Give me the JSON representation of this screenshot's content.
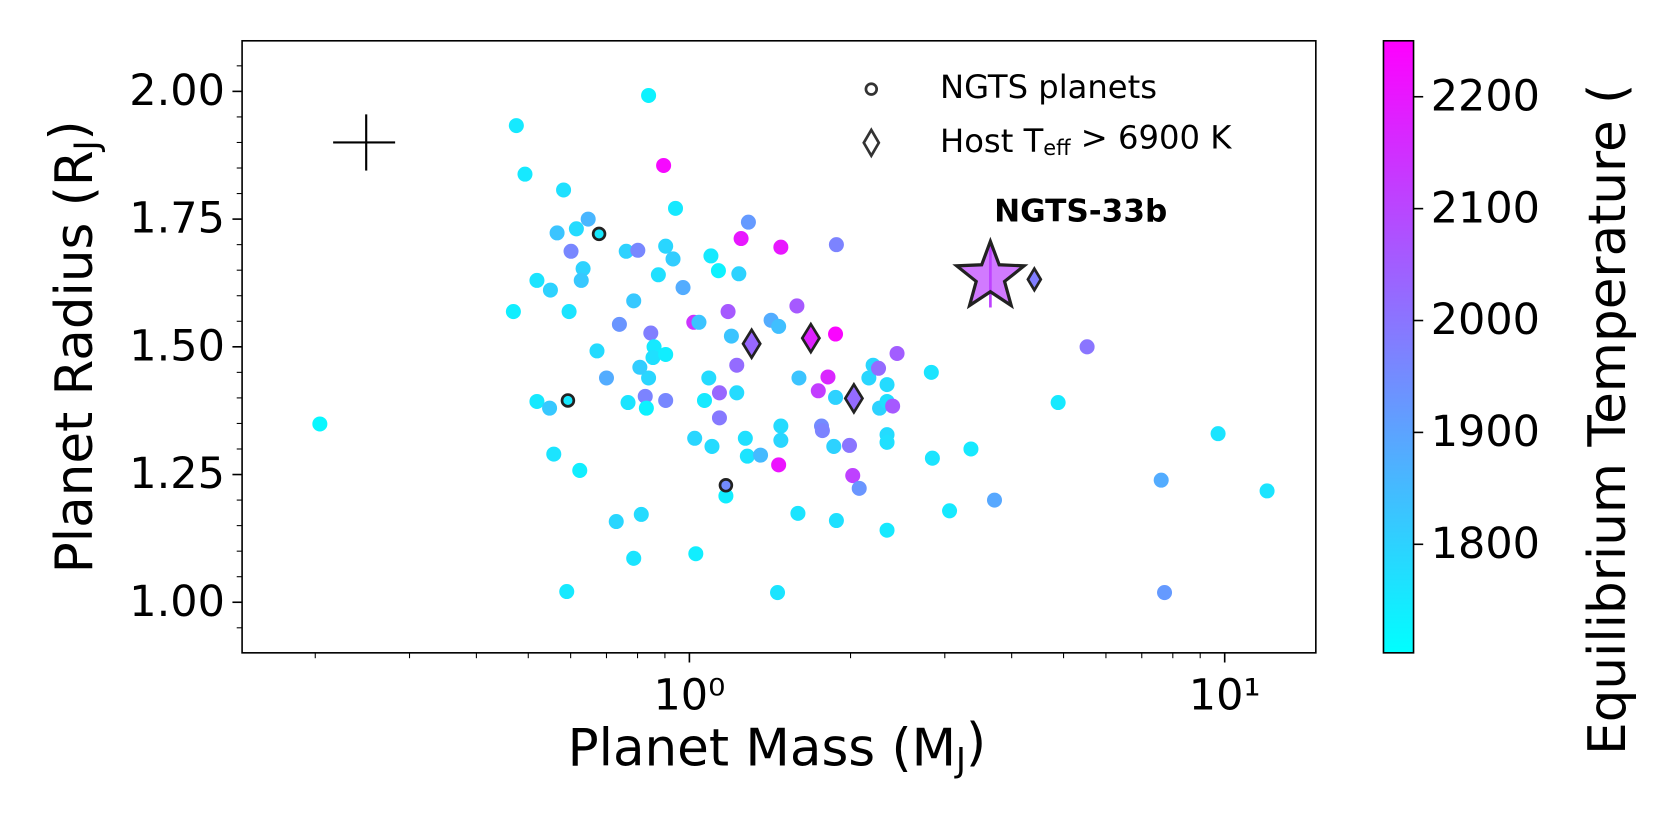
{
  "chart_data": {
    "type": "scatter",
    "xscale": "log",
    "xlabel": {
      "text": "Planet Mass (M",
      "sub": "J",
      "tail": ")"
    },
    "ylabel": {
      "text": "Planet Radius (R",
      "sub": "J",
      "tail": ")"
    },
    "xlim": [
      0.146,
      14.8
    ],
    "ylim": [
      0.901,
      2.099
    ],
    "xticks": [
      {
        "value": 1,
        "label": "10⁰"
      },
      {
        "value": 10,
        "label": "10¹"
      }
    ],
    "xminorticks": [
      0.2,
      0.3,
      0.4,
      0.5,
      0.6,
      0.7,
      0.8,
      0.9,
      2,
      3,
      4,
      5,
      6,
      7,
      8,
      9
    ],
    "yticks": [
      {
        "value": 1,
        "label": "1.00"
      },
      {
        "value": 1.25,
        "label": "1.25"
      },
      {
        "value": 1.5,
        "label": "1.50"
      },
      {
        "value": 1.75,
        "label": "1.75"
      },
      {
        "value": 2,
        "label": "2.00"
      }
    ],
    "yminorticks": [
      0.95,
      1.05,
      1.1,
      1.15,
      1.2,
      1.3,
      1.35,
      1.4,
      1.45,
      1.55,
      1.6,
      1.65,
      1.7,
      1.8,
      1.85,
      1.9,
      1.95,
      2.05
    ],
    "colorbar": {
      "label": "Equilibrium Temperature (",
      "colormap": "cool",
      "clim": [
        1703,
        2250
      ],
      "ticks": [
        1800,
        1900,
        2000,
        2100,
        2200
      ]
    },
    "typical_error": {
      "x": 0.249,
      "y": 1.9,
      "xerr": 0.033,
      "yerr": 0.055
    },
    "series": [
      {
        "marker": "circle",
        "x": [
          0.204,
          0.475,
          0.493,
          0.469,
          0.519,
          0.519,
          0.548,
          0.558,
          0.582,
          0.55,
          0.566,
          0.596,
          0.615,
          0.601,
          0.647,
          0.633,
          0.628,
          0.624,
          0.59,
          0.672,
          0.7,
          0.73,
          0.74,
          0.762,
          0.787,
          0.801,
          0.787,
          0.813,
          0.839,
          0.895,
          0.875,
          0.903,
          0.942,
          0.932,
          0.973,
          0.847,
          0.859,
          0.855,
          0.903,
          0.839,
          0.808,
          0.827,
          0.831,
          0.903,
          0.768,
          1.023,
          1.067,
          1.028,
          1.019,
          1.042,
          1.097,
          1.133,
          1.087,
          1.102,
          1.138,
          1.138,
          1.17,
          1.181,
          1.198,
          1.226,
          1.237,
          1.249,
          1.289,
          1.272,
          1.283,
          1.226,
          1.358,
          1.421,
          1.482,
          1.468,
          1.482,
          1.482,
          1.468,
          1.461,
          1.595,
          1.588,
          1.602,
          1.741,
          1.765,
          1.772,
          1.815,
          1.875,
          1.882,
          1.875,
          1.861,
          1.882,
          1.991,
          2.019,
          2.076,
          2.164,
          2.204,
          2.266,
          2.256,
          2.34,
          2.34,
          2.34,
          2.34,
          2.34,
          2.397,
          2.443,
          2.831,
          2.844,
          3.062,
          3.357,
          3.715,
          4.885,
          5.533,
          7.61,
          7.72,
          9.72,
          12.0
        ],
        "y": [
          1.349,
          1.933,
          1.838,
          1.569,
          1.63,
          1.393,
          1.38,
          1.29,
          1.807,
          1.611,
          1.723,
          1.569,
          1.731,
          1.687,
          1.75,
          1.653,
          1.63,
          1.258,
          1.021,
          1.492,
          1.439,
          1.158,
          1.544,
          1.687,
          1.59,
          1.689,
          1.086,
          1.172,
          1.992,
          1.855,
          1.641,
          1.697,
          1.771,
          1.672,
          1.616,
          1.527,
          1.5,
          1.479,
          1.485,
          1.439,
          1.46,
          1.403,
          1.38,
          1.395,
          1.391,
          1.321,
          1.395,
          1.095,
          1.548,
          1.548,
          1.678,
          1.649,
          1.439,
          1.305,
          1.361,
          1.41,
          1.208,
          1.569,
          1.521,
          1.41,
          1.643,
          1.712,
          1.744,
          1.321,
          1.286,
          1.464,
          1.288,
          1.552,
          1.695,
          1.54,
          1.345,
          1.317,
          1.269,
          1.019,
          1.174,
          1.58,
          1.439,
          1.414,
          1.345,
          1.336,
          1.441,
          1.525,
          1.7,
          1.401,
          1.305,
          1.16,
          1.307,
          1.248,
          1.223,
          1.439,
          1.464,
          1.38,
          1.458,
          1.426,
          1.393,
          1.328,
          1.313,
          1.141,
          1.384,
          1.487,
          1.45,
          1.282,
          1.179,
          1.3,
          1.2,
          1.391,
          1.5,
          1.239,
          1.019,
          1.33,
          1.218
        ],
        "c": [
          1720,
          1750,
          1750,
          1740,
          1760,
          1750,
          1820,
          1760,
          1770,
          1800,
          1830,
          1760,
          1780,
          1960,
          1860,
          1800,
          1820,
          1740,
          1750,
          1780,
          1880,
          1790,
          1930,
          1800,
          1820,
          1960,
          1760,
          1780,
          1730,
          2230,
          1770,
          1790,
          1750,
          1810,
          1880,
          1980,
          1750,
          1770,
          1740,
          1790,
          1810,
          1970,
          1730,
          1960,
          1760,
          1790,
          1750,
          1740,
          2140,
          1830,
          1750,
          1730,
          1780,
          1780,
          1990,
          2030,
          1740,
          2060,
          1830,
          1780,
          1800,
          2200,
          1920,
          1770,
          1760,
          2020,
          1850,
          1880,
          2200,
          1840,
          1780,
          1790,
          2210,
          1760,
          1760,
          2060,
          1830,
          2120,
          1950,
          1970,
          2170,
          2240,
          1970,
          1800,
          1800,
          1770,
          2000,
          2110,
          1930,
          1790,
          1790,
          1800,
          2020,
          1780,
          1770,
          1780,
          1770,
          1750,
          2060,
          2050,
          1760,
          1760,
          1750,
          1750,
          1890,
          1750,
          2000,
          1880,
          1920,
          1760,
          1760
        ]
      },
      {
        "name": "NGTS planets",
        "marker": "ring",
        "x": [
          0.678,
          0.593,
          1.17
        ],
        "y": [
          1.721,
          1.395,
          1.229
        ],
        "c": [
          1750,
          1750,
          1950
        ]
      },
      {
        "name": {
          "text": "Host T",
          "sub": "eff",
          "tail": " > 6900 K"
        },
        "marker": "diamond",
        "x": [
          1.307,
          1.686,
          2.029,
          4.41
        ],
        "y": [
          1.506,
          1.517,
          1.399,
          1.632
        ],
        "c": [
          2030,
          2180,
          2020,
          1980
        ]
      },
      {
        "label": "NGTS-33b",
        "marker": "star",
        "x": [
          3.65
        ],
        "y": [
          1.637
        ],
        "yerr": [
          0.06
        ],
        "c": [
          2110
        ]
      }
    ]
  }
}
